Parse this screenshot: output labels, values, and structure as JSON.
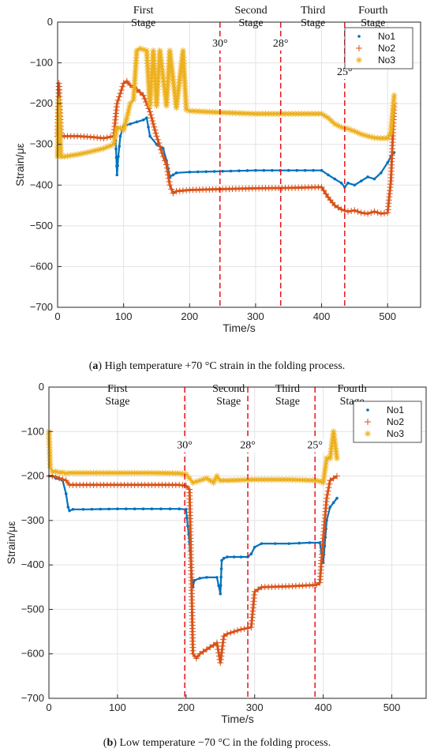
{
  "chart_data": [
    {
      "type": "line",
      "caption_letter": "a",
      "caption_text": " High temperature +70 °C strain in the folding process.",
      "xlabel": "Time/s",
      "ylabel": "Strain/με",
      "xlim": [
        0,
        550
      ],
      "ylim": [
        -700,
        0
      ],
      "xticks": [
        0,
        100,
        200,
        300,
        400,
        500
      ],
      "yticks": [
        0,
        -100,
        -200,
        -300,
        -400,
        -500,
        -600,
        -700
      ],
      "grid": true,
      "legend": "top-right",
      "stages": [
        {
          "lines": [
            "First",
            "Stage"
          ],
          "x": 130
        },
        {
          "lines": [
            "Second",
            "Stage"
          ],
          "x": 293
        },
        {
          "lines": [
            "Third",
            "Stage"
          ],
          "x": 387
        },
        {
          "lines": [
            "Fourth",
            "Stage"
          ],
          "x": 478
        }
      ],
      "dividers": [
        {
          "x": 246,
          "label": "30°",
          "label_y": -60
        },
        {
          "x": 338,
          "label": "28°",
          "label_y": -60
        },
        {
          "x": 435,
          "label": "25°",
          "label_y": -130
        }
      ],
      "series": [
        {
          "name": "No1",
          "marker": "dot",
          "color": "#0072BD",
          "x": [
            88,
            90,
            92,
            95,
            100,
            110,
            120,
            130,
            135,
            140,
            150,
            160,
            165,
            170,
            175,
            180,
            200,
            250,
            300,
            350,
            400,
            410,
            420,
            430,
            435,
            440,
            450,
            460,
            470,
            480,
            490,
            500,
            505,
            510
          ],
          "y": [
            -290,
            -375,
            -330,
            -280,
            -255,
            -250,
            -245,
            -240,
            -235,
            -280,
            -300,
            -310,
            -340,
            -380,
            -375,
            -370,
            -368,
            -366,
            -364,
            -364,
            -364,
            -375,
            -385,
            -395,
            -405,
            -395,
            -400,
            -390,
            -380,
            -385,
            -370,
            -345,
            -330,
            -320
          ]
        },
        {
          "name": "No2",
          "marker": "plus",
          "color": "#D95319",
          "x": [
            0,
            2,
            5,
            10,
            30,
            50,
            70,
            85,
            90,
            95,
            100,
            105,
            110,
            120,
            130,
            140,
            150,
            160,
            165,
            170,
            175,
            180,
            200,
            250,
            300,
            350,
            400,
            410,
            420,
            430,
            440,
            450,
            460,
            470,
            480,
            490,
            500,
            505,
            510
          ],
          "y": [
            -280,
            -150,
            -280,
            -280,
            -280,
            -282,
            -285,
            -280,
            -200,
            -175,
            -150,
            -145,
            -155,
            -165,
            -180,
            -220,
            -280,
            -330,
            -350,
            -400,
            -420,
            -415,
            -412,
            -410,
            -408,
            -407,
            -405,
            -430,
            -450,
            -460,
            -465,
            -462,
            -468,
            -470,
            -465,
            -470,
            -468,
            -390,
            -200
          ]
        },
        {
          "name": "No3",
          "marker": "star",
          "color": "#EDB120",
          "x": [
            0,
            2,
            5,
            10,
            30,
            50,
            70,
            85,
            90,
            95,
            100,
            105,
            110,
            115,
            120,
            125,
            135,
            140,
            145,
            150,
            155,
            165,
            170,
            180,
            190,
            195,
            200,
            250,
            300,
            350,
            400,
            410,
            420,
            430,
            440,
            450,
            460,
            470,
            480,
            490,
            500,
            505,
            510
          ],
          "y": [
            -330,
            -190,
            -330,
            -330,
            -325,
            -318,
            -310,
            -300,
            -260,
            -260,
            -265,
            -235,
            -200,
            -190,
            -70,
            -65,
            -70,
            -205,
            -70,
            -205,
            -70,
            -205,
            -70,
            -210,
            -70,
            -215,
            -218,
            -222,
            -225,
            -225,
            -225,
            -235,
            -250,
            -258,
            -262,
            -268,
            -275,
            -280,
            -284,
            -285,
            -285,
            -270,
            -180
          ]
        }
      ]
    },
    {
      "type": "line",
      "caption_letter": "b",
      "caption_text": " Low temperature −70 °C in the folding process.",
      "xlabel": "Time/s",
      "ylabel": "Strain/με",
      "xlim": [
        0,
        550
      ],
      "ylim": [
        -700,
        0
      ],
      "xticks": [
        0,
        100,
        200,
        300,
        400,
        500
      ],
      "yticks": [
        0,
        -100,
        -200,
        -300,
        -400,
        -500,
        -600,
        -700
      ],
      "grid": true,
      "legend": "top-right",
      "stages": [
        {
          "lines": [
            "First",
            "Stage"
          ],
          "x": 100
        },
        {
          "lines": [
            "Second",
            "Stage"
          ],
          "x": 262
        },
        {
          "lines": [
            "Third",
            "Stage"
          ],
          "x": 348
        },
        {
          "lines": [
            "Fourth",
            "Stage"
          ],
          "x": 442
        }
      ],
      "dividers": [
        {
          "x": 198,
          "label": "30°",
          "label_y": -138
        },
        {
          "x": 290,
          "label": "28°",
          "label_y": -138
        },
        {
          "x": 388,
          "label": "25°",
          "label_y": -138
        }
      ],
      "series": [
        {
          "name": "No1",
          "marker": "dot",
          "color": "#0072BD",
          "x": [
            0,
            5,
            10,
            20,
            25,
            28,
            30,
            35,
            50,
            100,
            150,
            190,
            200,
            205,
            208,
            210,
            212,
            220,
            230,
            245,
            250,
            252,
            255,
            260,
            270,
            280,
            290,
            295,
            300,
            310,
            330,
            350,
            380,
            395,
            400,
            405,
            410,
            415,
            420
          ],
          "y": [
            -200,
            -200,
            -205,
            -210,
            -240,
            -270,
            -278,
            -275,
            -275,
            -274,
            -274,
            -274,
            -275,
            -350,
            -420,
            -450,
            -435,
            -430,
            -428,
            -428,
            -465,
            -390,
            -385,
            -382,
            -382,
            -382,
            -382,
            -375,
            -360,
            -352,
            -352,
            -352,
            -350,
            -350,
            -395,
            -300,
            -270,
            -260,
            -250
          ]
        },
        {
          "name": "No2",
          "marker": "plus",
          "color": "#D95319",
          "x": [
            0,
            5,
            10,
            25,
            30,
            50,
            100,
            150,
            190,
            200,
            205,
            208,
            210,
            215,
            220,
            230,
            240,
            245,
            250,
            255,
            260,
            270,
            280,
            290,
            295,
            300,
            310,
            350,
            390,
            395,
            400,
            405,
            410,
            415,
            420
          ],
          "y": [
            -200,
            -200,
            -202,
            -210,
            -220,
            -220,
            -220,
            -220,
            -220,
            -222,
            -230,
            -450,
            -600,
            -610,
            -600,
            -590,
            -580,
            -575,
            -620,
            -560,
            -555,
            -550,
            -545,
            -542,
            -540,
            -460,
            -450,
            -448,
            -445,
            -440,
            -340,
            -250,
            -210,
            -205,
            -200
          ]
        },
        {
          "name": "No3",
          "marker": "star",
          "color": "#EDB120",
          "x": [
            0,
            2,
            5,
            10,
            15,
            20,
            25,
            30,
            50,
            100,
            150,
            190,
            200,
            205,
            210,
            220,
            230,
            240,
            245,
            250,
            255,
            260,
            300,
            350,
            390,
            395,
            400,
            405,
            410,
            415,
            420
          ],
          "y": [
            -100,
            -180,
            -190,
            -190,
            -192,
            -192,
            -194,
            -193,
            -193,
            -193,
            -193,
            -194,
            -196,
            -205,
            -215,
            -210,
            -205,
            -215,
            -200,
            -210,
            -210,
            -210,
            -208,
            -208,
            -210,
            -212,
            -215,
            -160,
            -160,
            -100,
            -160
          ]
        }
      ]
    }
  ]
}
